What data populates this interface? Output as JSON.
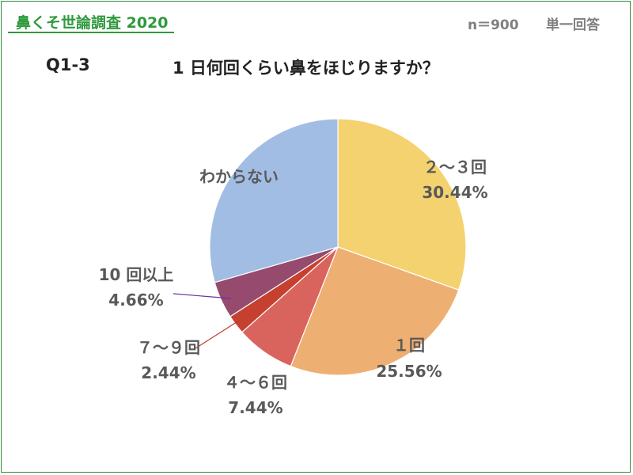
{
  "header": {
    "brand": "鼻くそ世論調査 2020",
    "sample_size": "n＝900",
    "answer_type": "単一回答"
  },
  "question": {
    "id": "Q1-3",
    "title": "1 日何回くらい鼻をほじりますか？"
  },
  "colors": {
    "brand": "#2e9a3c",
    "border": "#2e8b3a",
    "label": "#595959"
  },
  "chart_data": {
    "type": "pie",
    "title": "1 日何回くらい鼻をほじりますか？",
    "start": "12 o'clock, clockwise",
    "slices": [
      {
        "label": "２～３回",
        "value": 30.44,
        "display": "30.44%",
        "color": "#f5d270"
      },
      {
        "label": "１回",
        "value": 25.56,
        "display": "25.56%",
        "color": "#eeaf72"
      },
      {
        "label": "４～６回",
        "value": 7.44,
        "display": "7.44%",
        "color": "#d9645e"
      },
      {
        "label": "７～９回",
        "value": 2.44,
        "display": "2.44%",
        "color": "#c64030"
      },
      {
        "label": "10 回以上",
        "value": 4.66,
        "display": "4.66%",
        "color": "#954a6e"
      },
      {
        "label": "わからない",
        "value": 29.46,
        "display": "",
        "color": "#a1bde4"
      }
    ]
  }
}
